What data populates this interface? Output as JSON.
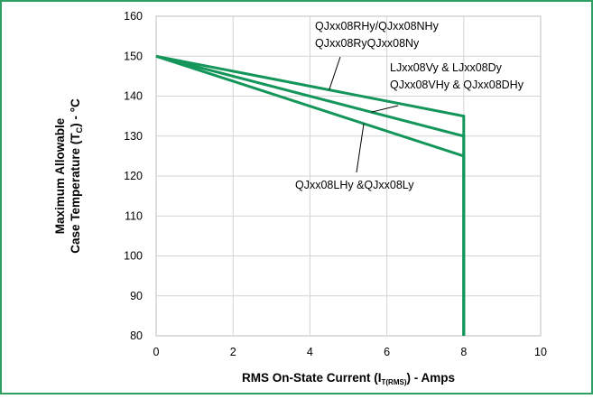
{
  "chart_data": {
    "type": "line",
    "xlabel_parts": [
      "RMS On-State Current (I",
      "T(RMS)",
      ") - Amps"
    ],
    "ylabel_line1": "Maximum Allowable",
    "ylabel_line2_parts": [
      "Case Temperature (T",
      "C",
      ") - °C"
    ],
    "xlim": [
      0,
      10
    ],
    "ylim": [
      80,
      160
    ],
    "xticks": [
      0,
      2,
      4,
      6,
      8,
      10
    ],
    "yticks": [
      80,
      90,
      100,
      110,
      120,
      130,
      140,
      150,
      160
    ],
    "grid": true,
    "series": [
      {
        "name": "QJxx08RHy/QJxx08NHy QJxx08RyQJxx08Ny",
        "x": [
          0,
          8,
          8
        ],
        "y": [
          150,
          135,
          80
        ]
      },
      {
        "name": "LJxx08Vy & LJxx08Dy QJxx08VHy & QJxx08DHy",
        "x": [
          0,
          8,
          8
        ],
        "y": [
          150,
          130,
          80
        ]
      },
      {
        "name": "QJxx08LHy &QJxx08Ly",
        "x": [
          0,
          8,
          8
        ],
        "y": [
          150,
          125,
          80
        ]
      }
    ],
    "annotations": [
      {
        "lines": [
          "QJxx08RHy/QJxx08NHy",
          "QJxx08RyQJxx08Ny"
        ],
        "series": 0
      },
      {
        "lines": [
          "LJxx08Vy & LJxx08Dy",
          "QJxx08VHy & QJxx08DHy"
        ],
        "series": 1
      },
      {
        "lines": [
          "QJxx08LHy &QJxx08Ly"
        ],
        "series": 2
      }
    ],
    "colors": {
      "line": "#14965a",
      "frame": "#2e9e63",
      "grid": "#d4d4d4"
    }
  }
}
